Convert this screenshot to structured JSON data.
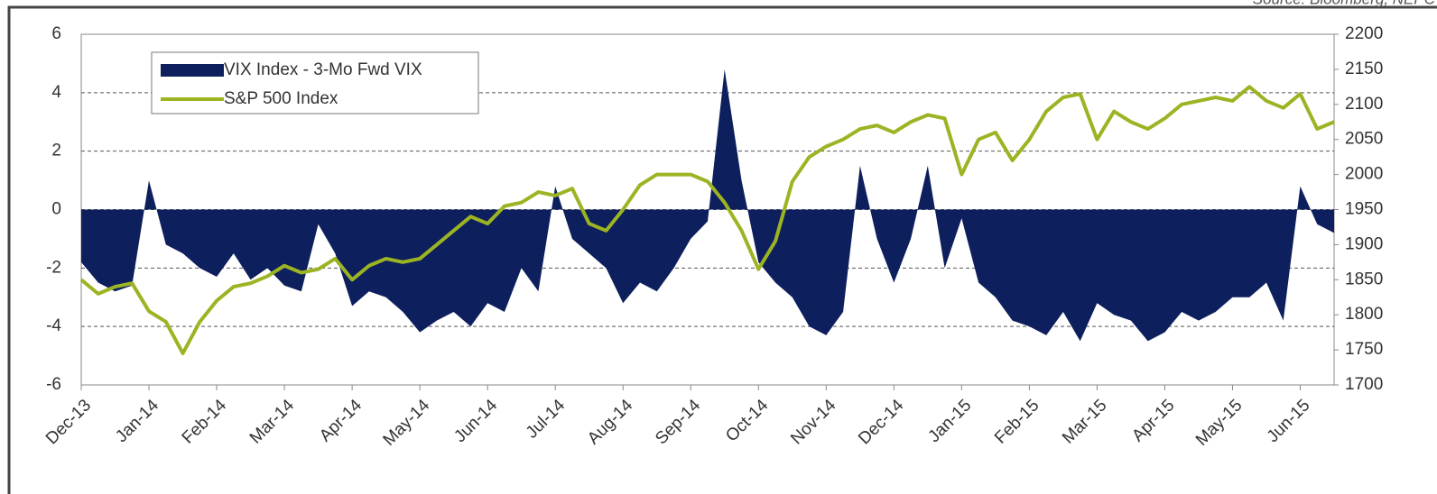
{
  "chart_data": {
    "type": "area_line",
    "source": "Source: Bloomberg, NEPC",
    "categories": [
      "Dec-13",
      null,
      null,
      null,
      "Jan-14",
      null,
      null,
      null,
      "Feb-14",
      null,
      null,
      null,
      "Mar-14",
      null,
      null,
      null,
      "Apr-14",
      null,
      null,
      null,
      "May-14",
      null,
      null,
      null,
      "Jun-14",
      null,
      null,
      null,
      "Jul-14",
      null,
      null,
      null,
      "Aug-14",
      null,
      null,
      null,
      "Sep-14",
      null,
      null,
      null,
      "Oct-14",
      null,
      null,
      null,
      "Nov-14",
      null,
      null,
      null,
      "Dec-14",
      null,
      null,
      null,
      "Jan-15",
      null,
      null,
      null,
      "Feb-15",
      null,
      null,
      null,
      "Mar-15",
      null,
      null,
      null,
      "Apr-15",
      null,
      null,
      null,
      "May-15",
      null,
      null,
      null,
      "Jun-15",
      null,
      null
    ],
    "series": [
      {
        "name": "VIX Index - 3-Mo Fwd VIX",
        "color": "#0d1f5c",
        "type": "area",
        "axis": "y",
        "values": [
          -1.8,
          -2.5,
          -2.8,
          -2.6,
          1.0,
          -1.2,
          -1.5,
          -2.0,
          -2.3,
          -1.5,
          -2.4,
          -2.0,
          -2.6,
          -2.8,
          -0.5,
          -1.5,
          -3.3,
          -2.8,
          -3.0,
          -3.5,
          -4.2,
          -3.8,
          -3.5,
          -4.0,
          -3.2,
          -3.5,
          -2.0,
          -2.8,
          0.8,
          -1.0,
          -1.5,
          -2.0,
          -3.2,
          -2.5,
          -2.8,
          -2.0,
          -1.0,
          -0.4,
          4.8,
          1.0,
          -1.8,
          -2.5,
          -3.0,
          -4.0,
          -4.3,
          -3.5,
          1.5,
          -1.0,
          -2.5,
          -1.0,
          1.5,
          -2.0,
          -0.3,
          -2.5,
          -3.0,
          -3.8,
          -4.0,
          -4.3,
          -3.5,
          -4.5,
          -3.2,
          -3.6,
          -3.8,
          -4.5,
          -4.2,
          -3.5,
          -3.8,
          -3.5,
          -3.0,
          -3.0,
          -2.5,
          -3.8,
          0.8,
          -0.5,
          -0.8
        ]
      },
      {
        "name": "S&P 500 Index",
        "color": "#9cb423",
        "type": "line",
        "axis": "y2",
        "values": [
          1850,
          1830,
          1840,
          1845,
          1805,
          1790,
          1745,
          1790,
          1820,
          1840,
          1845,
          1855,
          1870,
          1860,
          1865,
          1880,
          1850,
          1870,
          1880,
          1875,
          1880,
          1900,
          1920,
          1940,
          1930,
          1955,
          1960,
          1975,
          1970,
          1980,
          1930,
          1920,
          1950,
          1985,
          2000,
          2000,
          2000,
          1990,
          1960,
          1920,
          1865,
          1905,
          1990,
          2025,
          2040,
          2050,
          2065,
          2070,
          2060,
          2075,
          2085,
          2080,
          2000,
          2050,
          2060,
          2020,
          2050,
          2090,
          2110,
          2115,
          2050,
          2090,
          2075,
          2065,
          2080,
          2100,
          2105,
          2110,
          2105,
          2125,
          2105,
          2095,
          2115,
          2065,
          2075
        ]
      }
    ],
    "ylim": [
      -6,
      6
    ],
    "yticks": [
      -6,
      -4,
      -2,
      0,
      2,
      4,
      6
    ],
    "y2lim": [
      1700,
      2200
    ],
    "y2ticks": [
      1700,
      1750,
      1800,
      1850,
      1900,
      1950,
      2000,
      2050,
      2100,
      2150,
      2200
    ],
    "grid": true,
    "legend": "upper left"
  }
}
